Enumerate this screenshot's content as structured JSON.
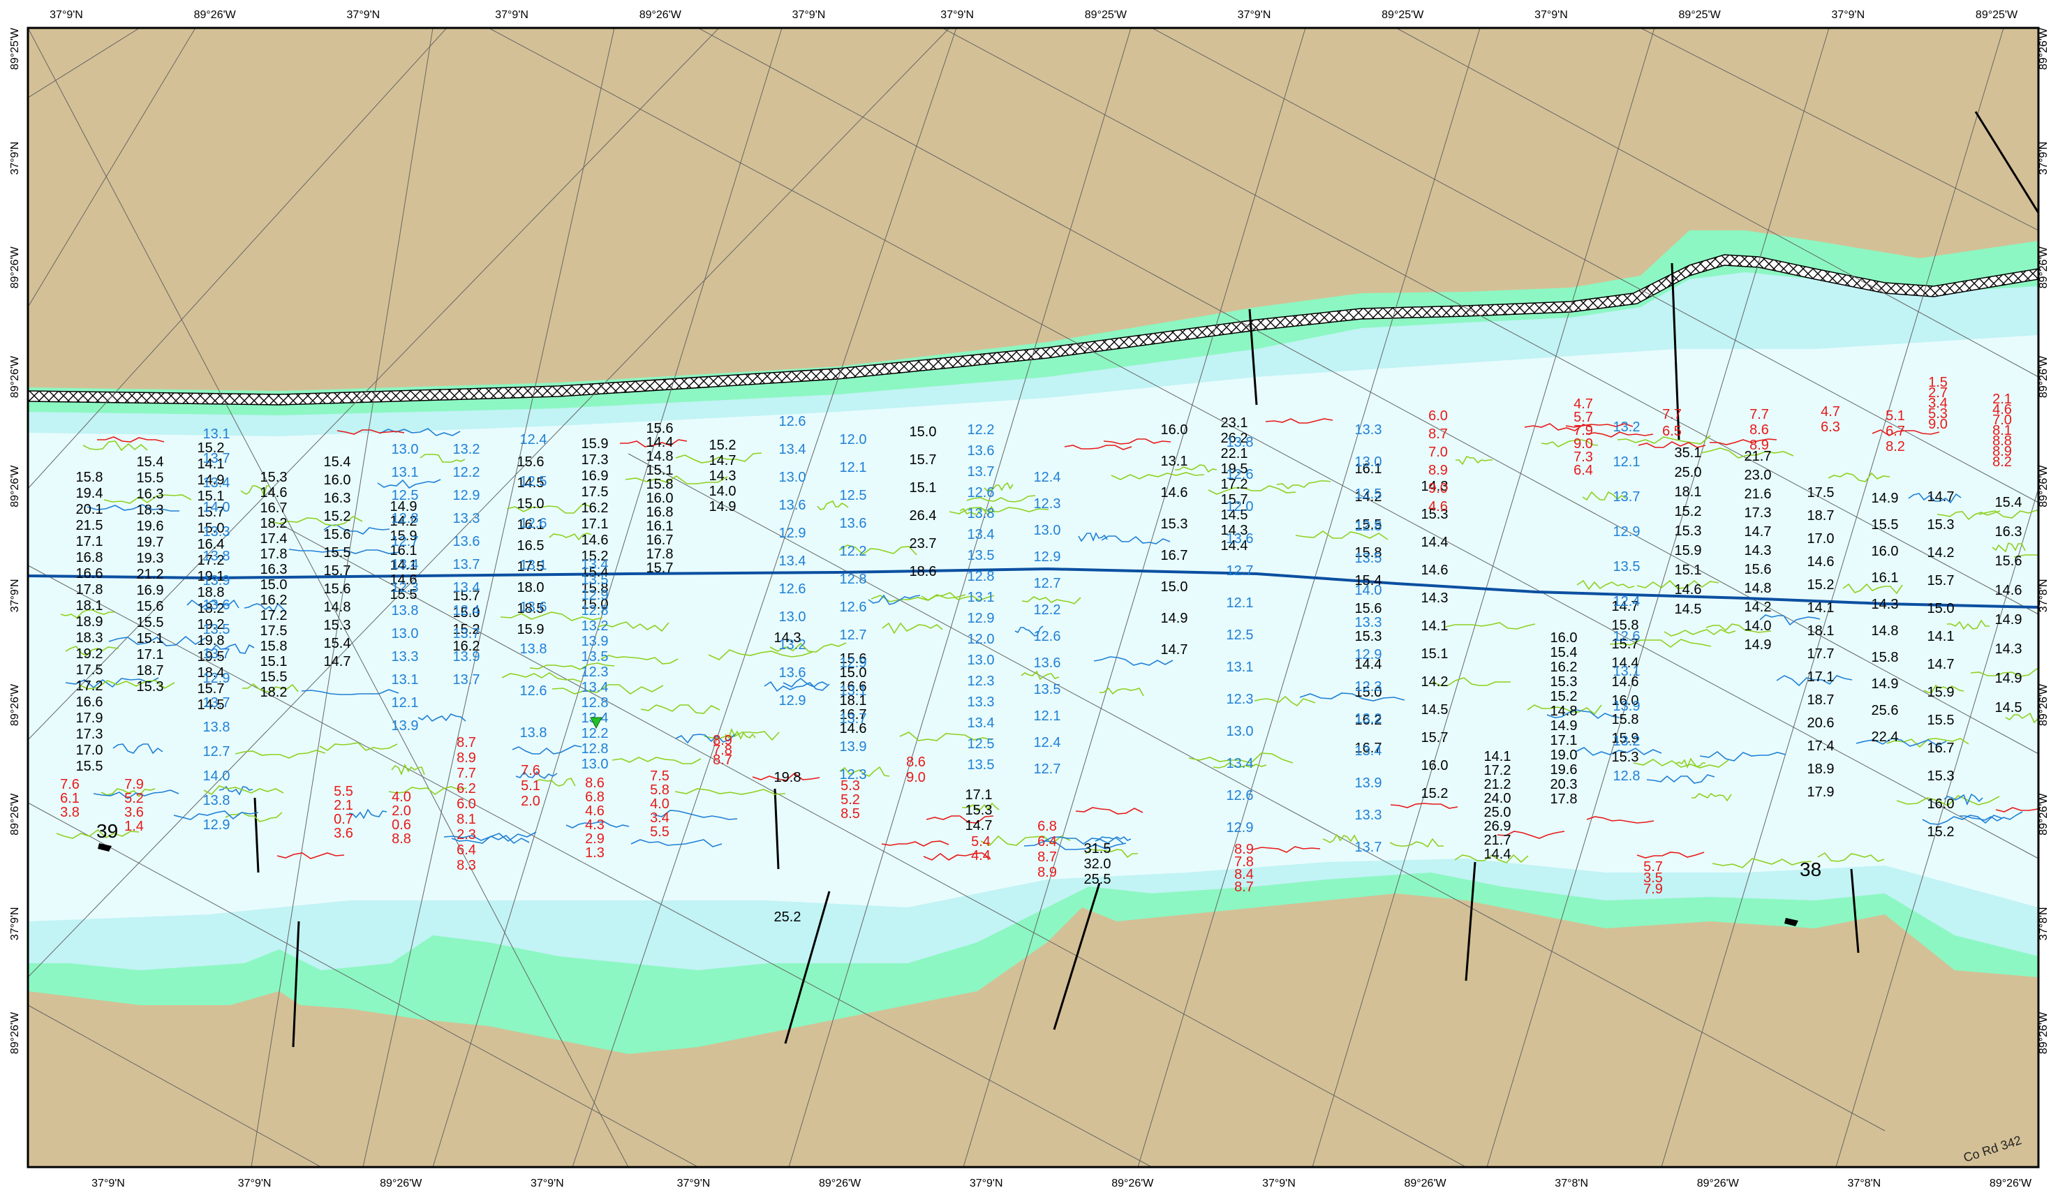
{
  "colors": {
    "land": "#d4c096",
    "shoal": "#8cf7c2",
    "shallow": "#c2f3f5",
    "deep": "#e8fcfd",
    "dredge_line": "#0b4fa0",
    "sounding_black": "#000000",
    "sounding_blue": "#1f7fd6",
    "sounding_green": "#8ed01e",
    "sounding_red": "#e81818"
  },
  "top_labels": [
    "37°9'N",
    "89°26'W",
    "37°9'N",
    "37°9'N",
    "89°26'W",
    "37°9'N",
    "37°9'N",
    "89°25'W",
    "37°9'N",
    "89°25'W",
    "37°9'N",
    "89°25'W",
    "37°9'N",
    "89°25'W"
  ],
  "bottom_labels": [
    "37°9'N",
    "37°9'N",
    "89°26'W",
    "37°9'N",
    "37°9'N",
    "89°26'W",
    "37°9'N",
    "89°26'W",
    "37°9'N",
    "89°26'W",
    "37°8'N",
    "89°26'W",
    "37°8'N",
    "89°26'W"
  ],
  "left_labels": [
    "89°25'W",
    "37°9'N",
    "89°26'W",
    "89°26'W",
    "89°26'W",
    "37°9'N",
    "89°26'W",
    "89°26'W",
    "37°9'N",
    "89°26'W"
  ],
  "right_labels": [
    "89°26'W",
    "37°9'N",
    "89°26'W",
    "89°26'W",
    "89°26'W",
    "37°8'N",
    "89°26'W",
    "89°26'W",
    "37°8'N",
    "89°26'W"
  ],
  "river_marks": [
    {
      "label": "39",
      "icon": "buoy-marker-icon"
    },
    {
      "label": "38",
      "icon": "buoy-marker-icon"
    }
  ],
  "road_label": "Co Rd 342",
  "soundings": {
    "col1": [
      "15.8",
      "19.4",
      "20.1",
      "21.5",
      "17.1",
      "16.8",
      "16.6",
      "17.8",
      "18.1",
      "18.9",
      "18.3",
      "19.2",
      "17.5",
      "17.2",
      "16.6",
      "17.9",
      "17.3",
      "17.0",
      "15.5"
    ],
    "col1_low": [
      "7.6",
      "6.1",
      "3.8"
    ],
    "col2": [
      "15.4",
      "15.5",
      "16.3",
      "18.3",
      "19.6",
      "19.7",
      "19.3",
      "21.2",
      "16.9",
      "15.6",
      "15.5",
      "15.1",
      "17.1",
      "18.7",
      "15.3"
    ],
    "col2_low": [
      "7.9",
      "5.2",
      "3.6",
      "1.4"
    ],
    "col3": [
      "15.2",
      "14.1",
      "14.9",
      "15.1",
      "15.7",
      "15.0",
      "16.4",
      "17.2",
      "19.1",
      "18.8",
      "18.2",
      "19.2",
      "19.8",
      "19.5",
      "18.4",
      "15.7",
      "14.5"
    ],
    "col4": [
      "15.3",
      "14.6",
      "16.7",
      "18.2",
      "17.4",
      "17.8",
      "16.3",
      "15.0",
      "16.2",
      "17.2",
      "17.5",
      "15.8",
      "15.1",
      "15.5",
      "18.2"
    ],
    "col5": [
      "15.4",
      "16.0",
      "16.3",
      "15.2",
      "15.6",
      "15.5",
      "15.7",
      "15.6",
      "14.8",
      "15.3",
      "15.4",
      "14.7"
    ],
    "col5_low": [
      "5.5",
      "2.1",
      "0.7",
      "3.6"
    ],
    "col6": [
      "14.9",
      "14.2",
      "15.9",
      "16.1",
      "14.1",
      "14.6",
      "15.5"
    ],
    "col6_low": [
      "4.0",
      "2.0",
      "0.6",
      "8.8"
    ],
    "col7": [
      "15.7",
      "15.0",
      "15.2",
      "16.2"
    ],
    "col7_low": [
      "8.7",
      "8.9",
      "7.7",
      "6.2",
      "6.0",
      "8.1",
      "2.3",
      "6.4",
      "8.3"
    ],
    "col8": [
      "15.6",
      "14.5",
      "15.0",
      "16.1",
      "16.5",
      "17.5",
      "18.0",
      "18.5",
      "15.9"
    ],
    "col8_low": [
      "7.6",
      "5.1",
      "2.0"
    ],
    "col9": [
      "15.9",
      "17.3",
      "16.9",
      "17.5",
      "16.2",
      "17.1",
      "14.6",
      "15.2",
      "15.4",
      "15.8",
      "15.0"
    ],
    "col9_low": [
      "8.6",
      "6.8",
      "4.6",
      "4.3",
      "2.9",
      "1.3"
    ],
    "col10": [
      "15.6",
      "14.4",
      "14.8",
      "15.1",
      "15.8",
      "16.0",
      "16.8",
      "16.1",
      "16.7",
      "17.8",
      "15.7"
    ],
    "col10_low": [
      "7.5",
      "5.8",
      "4.0",
      "3.4",
      "5.5"
    ],
    "col11": [
      "15.2",
      "14.7",
      "14.3",
      "14.0",
      "14.9"
    ],
    "col11_low": [
      "8.9",
      "7.8",
      "8.7"
    ],
    "col12": [
      "14.3",
      "19.8",
      "25.2"
    ],
    "col13": [
      "15.6",
      "15.0",
      "16.6",
      "18.1",
      "16.7",
      "14.6"
    ],
    "col13_low": [
      "5.3",
      "5.2",
      "8.5"
    ],
    "col14": [
      "15.0",
      "15.7",
      "15.1",
      "26.4",
      "23.7",
      "18.6"
    ],
    "col14_low": [
      "8.6",
      "9.0"
    ],
    "col15": [
      "17.1",
      "15.3",
      "14.7"
    ],
    "col15_low": [
      "5.4",
      "4.4"
    ],
    "col16": [
      "31.5",
      "32.0",
      "25.5"
    ],
    "col16_low": [
      "6.8",
      "6.4",
      "8.7",
      "8.9"
    ],
    "col17": [
      "16.0",
      "13.1",
      "14.6",
      "15.3",
      "16.7",
      "15.0",
      "14.9",
      "14.7"
    ],
    "col18": [
      "23.1",
      "26.2",
      "22.1",
      "19.5",
      "17.2",
      "15.7",
      "14.5",
      "14.3",
      "14.4"
    ],
    "col18_low": [
      "8.9",
      "7.8",
      "8.4",
      "8.7"
    ],
    "col19": [
      "16.1",
      "14.2",
      "15.5",
      "15.8",
      "15.4",
      "15.6",
      "15.3",
      "14.4",
      "15.0",
      "16.2",
      "16.7"
    ],
    "col20": [
      "14.3",
      "15.3",
      "14.4",
      "14.6",
      "14.3",
      "14.1",
      "15.1",
      "14.2",
      "14.5",
      "15.7",
      "16.0",
      "15.2"
    ],
    "col21": [
      "14.1",
      "17.2",
      "21.2",
      "24.0",
      "25.0",
      "26.9",
      "21.7",
      "14.4"
    ],
    "col21_low": [
      "6.0",
      "8.7",
      "7.0",
      "8.9",
      "9.0",
      "4.6"
    ],
    "col22": [
      "16.0",
      "15.4",
      "16.2",
      "15.3",
      "15.2",
      "14.8",
      "14.9",
      "17.1",
      "19.0",
      "19.6",
      "20.3",
      "17.8"
    ],
    "col22_low": [
      "4.7",
      "5.7",
      "7.9",
      "9.0",
      "7.3",
      "6.4"
    ],
    "col23": [
      "14.7",
      "15.8",
      "15.7",
      "14.4",
      "14.6",
      "16.0",
      "15.8",
      "15.9",
      "15.3"
    ],
    "col23_low": [
      "5.7",
      "3.5",
      "7.9"
    ],
    "col24": [
      "35.1",
      "25.0",
      "18.1",
      "15.2",
      "15.3",
      "15.9",
      "15.1",
      "14.6",
      "14.5"
    ],
    "col24_low": [
      "7.7",
      "6.5"
    ],
    "col25": [
      "21.7",
      "23.0",
      "21.6",
      "17.3",
      "14.7",
      "14.3",
      "15.6",
      "14.8",
      "14.2",
      "14.0",
      "14.9"
    ],
    "col25_low": [
      "7.7",
      "8.6",
      "8.9"
    ],
    "col26": [
      "17.5",
      "18.7",
      "17.0",
      "14.6",
      "15.2",
      "14.1",
      "18.1",
      "17.7",
      "17.1",
      "18.7",
      "20.6",
      "17.4",
      "18.9",
      "17.9"
    ],
    "col26_low": [
      "4.7",
      "6.3"
    ],
    "col27": [
      "14.9",
      "15.5",
      "16.0",
      "16.1",
      "14.3",
      "14.8",
      "15.8",
      "14.9",
      "25.6",
      "22.4"
    ],
    "col27_low": [
      "5.1",
      "6.7",
      "8.2"
    ],
    "col28": [
      "14.7",
      "15.3",
      "14.2",
      "15.7",
      "15.0",
      "14.1",
      "14.7",
      "15.9",
      "15.5",
      "16.7",
      "15.3",
      "16.0",
      "15.2"
    ],
    "col28_low": [
      "1.5",
      "2.7",
      "3.4",
      "5.3",
      "9.0"
    ],
    "col29": [
      "15.4",
      "16.3",
      "15.6",
      "14.6",
      "14.9",
      "14.3",
      "14.9",
      "14.5"
    ],
    "col29_low": [
      "2.1",
      "4.6",
      "7.0",
      "8.1",
      "8.8",
      "8.9",
      "8.2"
    ],
    "blue_a": [
      "13.1",
      "13.7",
      "13.4",
      "14.0",
      "13.3",
      "13.8",
      "13.9",
      "13.6",
      "13.5",
      "13.7",
      "12.9",
      "13.7",
      "13.8",
      "12.7",
      "14.0",
      "13.8",
      "12.9"
    ],
    "blue_b": [
      "13.0",
      "13.1",
      "12.5",
      "12.8",
      "12.7",
      "13.4",
      "12.3",
      "13.8",
      "13.0",
      "13.3",
      "13.1",
      "12.1",
      "13.9"
    ],
    "blue_c": [
      "13.2",
      "12.2",
      "12.9",
      "13.3",
      "13.6",
      "13.7",
      "13.4",
      "12.4",
      "13.7",
      "13.9",
      "13.7"
    ],
    "blue_d": [
      "12.4",
      "12.5",
      "12.6",
      "13.1",
      "13.6",
      "13.8",
      "12.6",
      "13.8"
    ],
    "blue_e": [
      "13.4",
      "13.5",
      "12.9",
      "12.8",
      "13.2",
      "13.9",
      "13.5",
      "12.3",
      "13.4",
      "12.8",
      "13.4",
      "12.2",
      "12.8",
      "13.0"
    ],
    "blue_f": [
      "12.6",
      "13.4",
      "13.0",
      "13.6",
      "12.9",
      "13.4",
      "12.6",
      "13.0",
      "13.2",
      "13.6",
      "12.9"
    ],
    "blue_g": [
      "12.0",
      "12.1",
      "12.5",
      "13.6",
      "12.2",
      "12.8",
      "12.6",
      "12.7",
      "12.9",
      "13.1",
      "13.7",
      "13.9",
      "12.3"
    ],
    "blue_h": [
      "12.2",
      "13.6",
      "13.7",
      "12.6",
      "13.8",
      "13.4",
      "13.5",
      "12.8",
      "13.1",
      "12.9",
      "12.0",
      "13.0",
      "12.3",
      "13.3",
      "13.4",
      "12.5",
      "13.5"
    ],
    "blue_i": [
      "12.4",
      "12.3",
      "13.0",
      "12.9",
      "12.7",
      "12.2",
      "12.6",
      "13.6",
      "13.5",
      "12.1",
      "12.4",
      "12.7"
    ],
    "blue_j": [
      "13.8",
      "12.6",
      "12.0",
      "13.6",
      "12.7",
      "12.1",
      "12.5",
      "13.1",
      "12.3",
      "13.0",
      "13.4",
      "12.6",
      "12.9"
    ],
    "blue_k": [
      "13.3",
      "13.0",
      "12.5",
      "12.8",
      "13.5",
      "14.0",
      "13.3",
      "12.9",
      "12.3",
      "13.2",
      "13.4",
      "13.9",
      "13.3",
      "13.7"
    ],
    "blue_l": [
      "13.2",
      "12.1",
      "13.7",
      "12.9",
      "13.5",
      "12.4",
      "12.6",
      "13.1",
      "13.9",
      "13.2",
      "12.8"
    ]
  }
}
